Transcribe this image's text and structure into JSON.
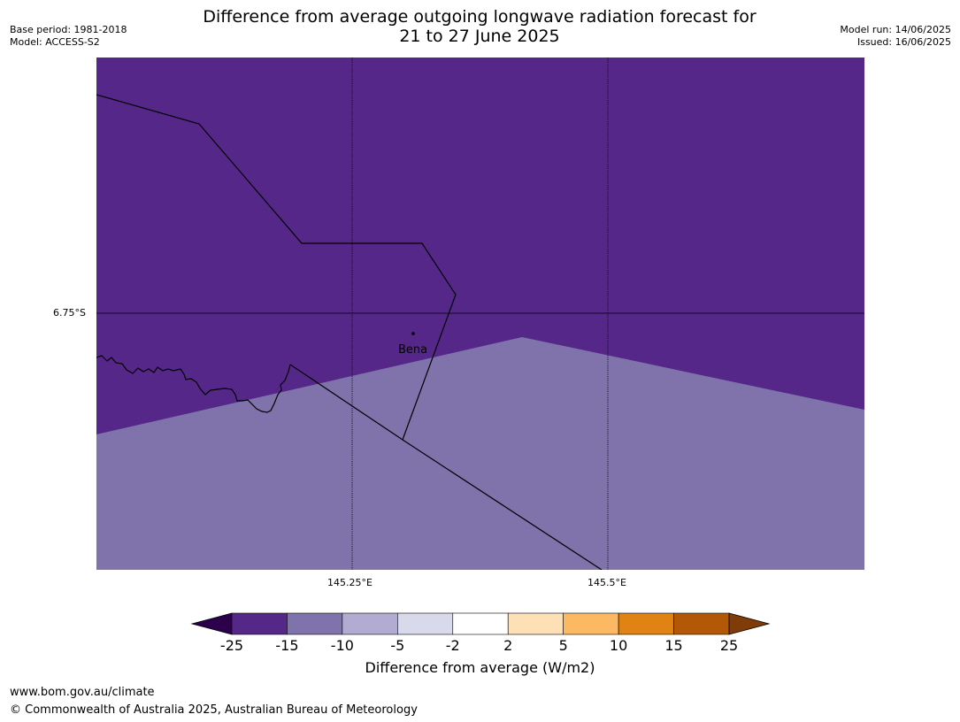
{
  "header": {
    "title_line1": "Difference from average outgoing longwave radiation forecast for",
    "title_line2": "21 to 27 June 2025",
    "base_period": "Base period: 1981-2018",
    "model": "Model: ACCESS-S2",
    "model_run": "Model run: 14/06/2025",
    "issued": "Issued: 16/06/2025"
  },
  "map": {
    "lat_labels": [
      "6.75°S"
    ],
    "lon_labels": [
      "145.25°E",
      "145.5°E"
    ],
    "place": {
      "name": "Bena"
    },
    "colors": {
      "dark_purple": "#542788",
      "light_purple": "#8073ac",
      "boundary": "#000000"
    }
  },
  "colorbar": {
    "label": "Difference from average (W/m2)",
    "ticks": [
      "-25",
      "-15",
      "-10",
      "-5",
      "-2",
      "2",
      "5",
      "10",
      "15",
      "25"
    ],
    "colors": [
      "#2d004b",
      "#542788",
      "#8073ac",
      "#b2abd2",
      "#d8daeb",
      "#ffffff",
      "#fee0b6",
      "#fdb863",
      "#e08214",
      "#b35806",
      "#7f3b08"
    ]
  },
  "footer": {
    "url": "www.bom.gov.au/climate",
    "copyright": "© Commonwealth of Australia 2025, Australian Bureau of Meteorology"
  }
}
